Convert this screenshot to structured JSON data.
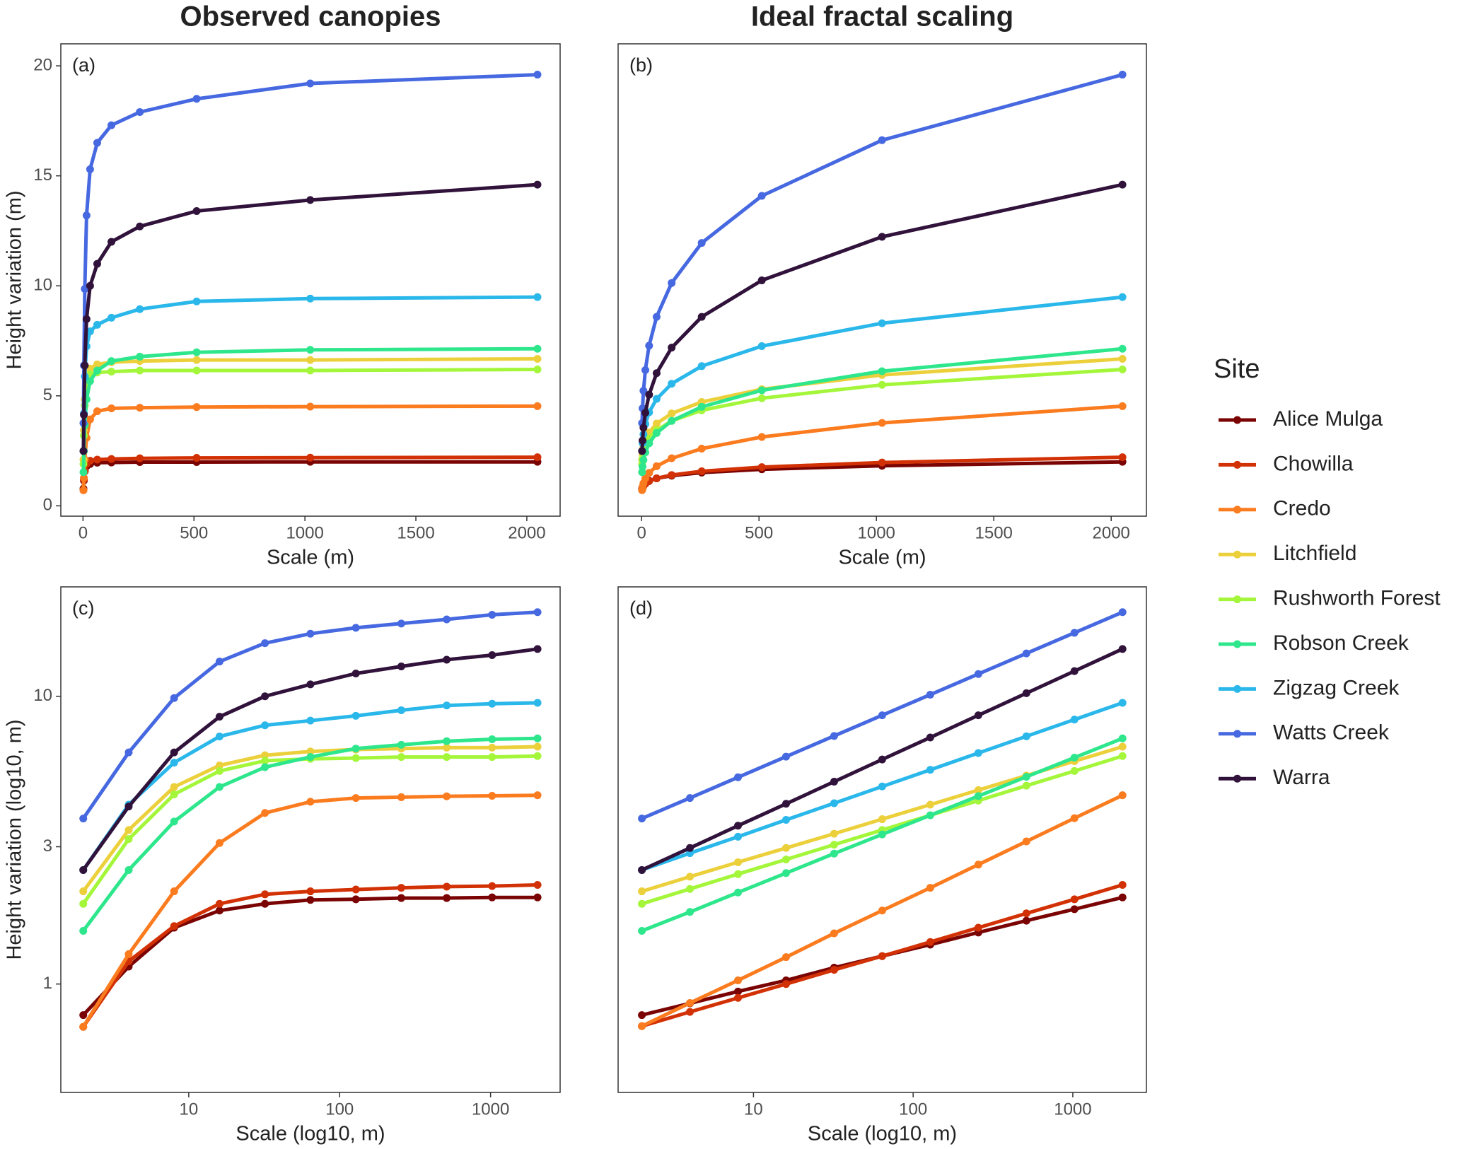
{
  "chart_data": [
    {
      "type": "line",
      "title": "Observed canopies",
      "panel_label": "(a)",
      "x_label": "Scale (m)",
      "y_label": "Height variation (m)",
      "x": [
        2,
        4,
        8,
        16,
        32,
        64,
        128,
        256,
        512,
        1024,
        2048
      ],
      "xlim": [
        -100,
        2150
      ],
      "xticks": [
        0,
        500,
        1000,
        1500,
        2000
      ],
      "ylim": [
        -0.47,
        21.0
      ],
      "yticks": [
        0,
        5,
        10,
        15,
        20
      ],
      "log_x": false,
      "log_y": false,
      "grid": false,
      "legend": "right",
      "series": [
        {
          "name": "Alice Mulga",
          "color": "#7a0403",
          "values": [
            0.78,
            1.15,
            1.57,
            1.8,
            1.9,
            1.96,
            1.97,
            1.99,
            1.99,
            2.0,
            2.0
          ]
        },
        {
          "name": "Chowilla",
          "color": "#d23105",
          "values": [
            0.71,
            1.2,
            1.59,
            1.9,
            2.05,
            2.1,
            2.13,
            2.16,
            2.18,
            2.19,
            2.21
          ]
        },
        {
          "name": "Credo",
          "color": "#fb7b1f",
          "values": [
            0.71,
            1.27,
            2.1,
            3.09,
            3.93,
            4.3,
            4.43,
            4.46,
            4.49,
            4.51,
            4.53
          ]
        },
        {
          "name": "Litchfield",
          "color": "#ecd03b",
          "values": [
            2.1,
            3.43,
            4.84,
            5.75,
            6.24,
            6.43,
            6.53,
            6.58,
            6.63,
            6.63,
            6.68
          ]
        },
        {
          "name": "Rushworth Forest",
          "color": "#a4f63a",
          "values": [
            1.9,
            3.19,
            4.56,
            5.5,
            5.97,
            6.06,
            6.1,
            6.15,
            6.15,
            6.15,
            6.2
          ]
        },
        {
          "name": "Robson Creek",
          "color": "#2ee68c",
          "values": [
            1.53,
            2.49,
            3.67,
            4.84,
            5.67,
            6.15,
            6.58,
            6.78,
            6.98,
            7.09,
            7.14
          ]
        },
        {
          "name": "Zigzag Creek",
          "color": "#2ab7ea",
          "values": [
            2.49,
            4.2,
            5.88,
            7.25,
            7.93,
            8.23,
            8.55,
            8.94,
            9.29,
            9.42,
            9.49
          ]
        },
        {
          "name": "Watts Creek",
          "color": "#4668e0",
          "values": [
            3.76,
            6.38,
            9.86,
            13.2,
            15.3,
            16.5,
            17.3,
            17.9,
            18.5,
            19.2,
            19.6
          ]
        },
        {
          "name": "Warra",
          "color": "#30123b",
          "values": [
            2.49,
            4.14,
            6.38,
            8.49,
            10.0,
            11.0,
            12.0,
            12.7,
            13.4,
            13.9,
            14.6
          ]
        }
      ]
    },
    {
      "type": "line",
      "title": "Ideal fractal scaling",
      "panel_label": "(b)",
      "x_label": "Scale (m)",
      "x": [
        2,
        4,
        8,
        16,
        32,
        64,
        128,
        256,
        512,
        1024,
        2048
      ],
      "xlim": [
        -100,
        2150
      ],
      "xticks": [
        0,
        500,
        1000,
        1500,
        2000
      ],
      "ylim": [
        -0.47,
        21.0
      ],
      "log_x": false,
      "log_y": false,
      "grid": false,
      "series": [
        {
          "name": "Alice Mulga",
          "color": "#7a0403",
          "values": [
            0.78,
            0.857,
            0.942,
            1.03,
            1.14,
            1.25,
            1.37,
            1.51,
            1.66,
            1.82,
            2.0
          ]
        },
        {
          "name": "Chowilla",
          "color": "#d23105",
          "values": [
            0.714,
            0.8,
            0.895,
            1.0,
            1.12,
            1.25,
            1.4,
            1.57,
            1.76,
            1.97,
            2.21
          ]
        },
        {
          "name": "Credo",
          "color": "#fb7b1f",
          "values": [
            0.714,
            0.859,
            1.03,
            1.24,
            1.5,
            1.8,
            2.16,
            2.6,
            3.13,
            3.77,
            4.53
          ]
        },
        {
          "name": "Litchfield",
          "color": "#ecd03b",
          "values": [
            2.1,
            2.36,
            2.65,
            2.97,
            3.33,
            3.74,
            4.2,
            4.72,
            5.3,
            5.95,
            6.68
          ]
        },
        {
          "name": "Rushworth Forest",
          "color": "#a4f63a",
          "values": [
            1.9,
            2.14,
            2.41,
            2.71,
            3.05,
            3.43,
            3.86,
            4.34,
            4.89,
            5.5,
            6.2
          ]
        },
        {
          "name": "Robson Creek",
          "color": "#2ee68c",
          "values": [
            1.53,
            1.78,
            2.08,
            2.43,
            2.84,
            3.31,
            3.86,
            4.5,
            5.25,
            6.12,
            7.14
          ]
        },
        {
          "name": "Zigzag Creek",
          "color": "#2ab7ea",
          "values": [
            2.49,
            2.85,
            3.25,
            3.72,
            4.25,
            4.86,
            5.55,
            6.35,
            7.26,
            8.3,
            9.49
          ]
        },
        {
          "name": "Watts Creek",
          "color": "#4668e0",
          "values": [
            3.76,
            4.43,
            5.23,
            6.17,
            7.28,
            8.59,
            10.13,
            11.95,
            14.09,
            16.62,
            19.6
          ]
        },
        {
          "name": "Warra",
          "color": "#30123b",
          "values": [
            2.49,
            2.97,
            3.55,
            4.23,
            5.05,
            6.03,
            7.19,
            8.59,
            10.25,
            12.23,
            14.6
          ]
        }
      ]
    },
    {
      "type": "line",
      "panel_label": "(c)",
      "x_label": "Scale (log10, m)",
      "y_label": "Height variation (log10, m)",
      "x": [
        2,
        4,
        8,
        16,
        32,
        64,
        128,
        256,
        512,
        1024,
        2048
      ],
      "xlim": [
        1.42,
        2890
      ],
      "xticks": [
        10,
        100,
        1000
      ],
      "ylim": [
        0.42,
        24.0
      ],
      "yticks": [
        1,
        3,
        10
      ],
      "log_x": true,
      "log_y": true,
      "grid": false,
      "series": [
        {
          "name": "Alice Mulga",
          "color": "#7a0403",
          "values": [
            0.78,
            1.15,
            1.57,
            1.8,
            1.9,
            1.96,
            1.97,
            1.99,
            1.99,
            2.0,
            2.0
          ]
        },
        {
          "name": "Chowilla",
          "color": "#d23105",
          "values": [
            0.71,
            1.2,
            1.59,
            1.9,
            2.05,
            2.1,
            2.13,
            2.16,
            2.18,
            2.19,
            2.21
          ]
        },
        {
          "name": "Credo",
          "color": "#fb7b1f",
          "values": [
            0.71,
            1.27,
            2.1,
            3.09,
            3.93,
            4.3,
            4.43,
            4.46,
            4.49,
            4.51,
            4.53
          ]
        },
        {
          "name": "Litchfield",
          "color": "#ecd03b",
          "values": [
            2.1,
            3.43,
            4.84,
            5.75,
            6.24,
            6.43,
            6.53,
            6.58,
            6.63,
            6.63,
            6.68
          ]
        },
        {
          "name": "Rushworth Forest",
          "color": "#a4f63a",
          "values": [
            1.9,
            3.19,
            4.56,
            5.5,
            5.97,
            6.06,
            6.1,
            6.15,
            6.15,
            6.15,
            6.2
          ]
        },
        {
          "name": "Robson Creek",
          "color": "#2ee68c",
          "values": [
            1.53,
            2.49,
            3.67,
            4.84,
            5.67,
            6.15,
            6.58,
            6.78,
            6.98,
            7.09,
            7.14
          ]
        },
        {
          "name": "Zigzag Creek",
          "color": "#2ab7ea",
          "values": [
            2.49,
            4.2,
            5.88,
            7.25,
            7.93,
            8.23,
            8.55,
            8.94,
            9.29,
            9.42,
            9.49
          ]
        },
        {
          "name": "Watts Creek",
          "color": "#4668e0",
          "values": [
            3.76,
            6.38,
            9.86,
            13.2,
            15.3,
            16.5,
            17.3,
            17.9,
            18.5,
            19.2,
            19.6
          ]
        },
        {
          "name": "Warra",
          "color": "#30123b",
          "values": [
            2.49,
            4.14,
            6.38,
            8.49,
            10.0,
            11.0,
            12.0,
            12.7,
            13.4,
            13.9,
            14.6
          ]
        }
      ]
    },
    {
      "type": "line",
      "panel_label": "(d)",
      "x_label": "Scale (log10, m)",
      "x": [
        2,
        4,
        8,
        16,
        32,
        64,
        128,
        256,
        512,
        1024,
        2048
      ],
      "xlim": [
        1.42,
        2890
      ],
      "xticks": [
        10,
        100,
        1000
      ],
      "ylim": [
        0.42,
        24.0
      ],
      "log_x": true,
      "log_y": true,
      "grid": false,
      "series": [
        {
          "name": "Alice Mulga",
          "color": "#7a0403",
          "values": [
            0.78,
            0.857,
            0.942,
            1.03,
            1.14,
            1.25,
            1.37,
            1.51,
            1.66,
            1.82,
            2.0
          ]
        },
        {
          "name": "Chowilla",
          "color": "#d23105",
          "values": [
            0.714,
            0.8,
            0.895,
            1.0,
            1.12,
            1.25,
            1.4,
            1.57,
            1.76,
            1.97,
            2.21
          ]
        },
        {
          "name": "Credo",
          "color": "#fb7b1f",
          "values": [
            0.714,
            0.859,
            1.03,
            1.24,
            1.5,
            1.8,
            2.16,
            2.6,
            3.13,
            3.77,
            4.53
          ]
        },
        {
          "name": "Litchfield",
          "color": "#ecd03b",
          "values": [
            2.1,
            2.36,
            2.65,
            2.97,
            3.33,
            3.74,
            4.2,
            4.72,
            5.3,
            5.95,
            6.68
          ]
        },
        {
          "name": "Rushworth Forest",
          "color": "#a4f63a",
          "values": [
            1.9,
            2.14,
            2.41,
            2.71,
            3.05,
            3.43,
            3.86,
            4.34,
            4.89,
            5.5,
            6.2
          ]
        },
        {
          "name": "Robson Creek",
          "color": "#2ee68c",
          "values": [
            1.53,
            1.78,
            2.08,
            2.43,
            2.84,
            3.31,
            3.86,
            4.5,
            5.25,
            6.12,
            7.14
          ]
        },
        {
          "name": "Zigzag Creek",
          "color": "#2ab7ea",
          "values": [
            2.49,
            2.85,
            3.25,
            3.72,
            4.25,
            4.86,
            5.55,
            6.35,
            7.26,
            8.3,
            9.49
          ]
        },
        {
          "name": "Watts Creek",
          "color": "#4668e0",
          "values": [
            3.76,
            4.43,
            5.23,
            6.17,
            7.28,
            8.59,
            10.13,
            11.95,
            14.09,
            16.62,
            19.6
          ]
        },
        {
          "name": "Warra",
          "color": "#30123b",
          "values": [
            2.49,
            2.97,
            3.55,
            4.23,
            5.05,
            6.03,
            7.19,
            8.59,
            10.25,
            12.23,
            14.6
          ]
        }
      ]
    }
  ],
  "legend_title": "Site"
}
